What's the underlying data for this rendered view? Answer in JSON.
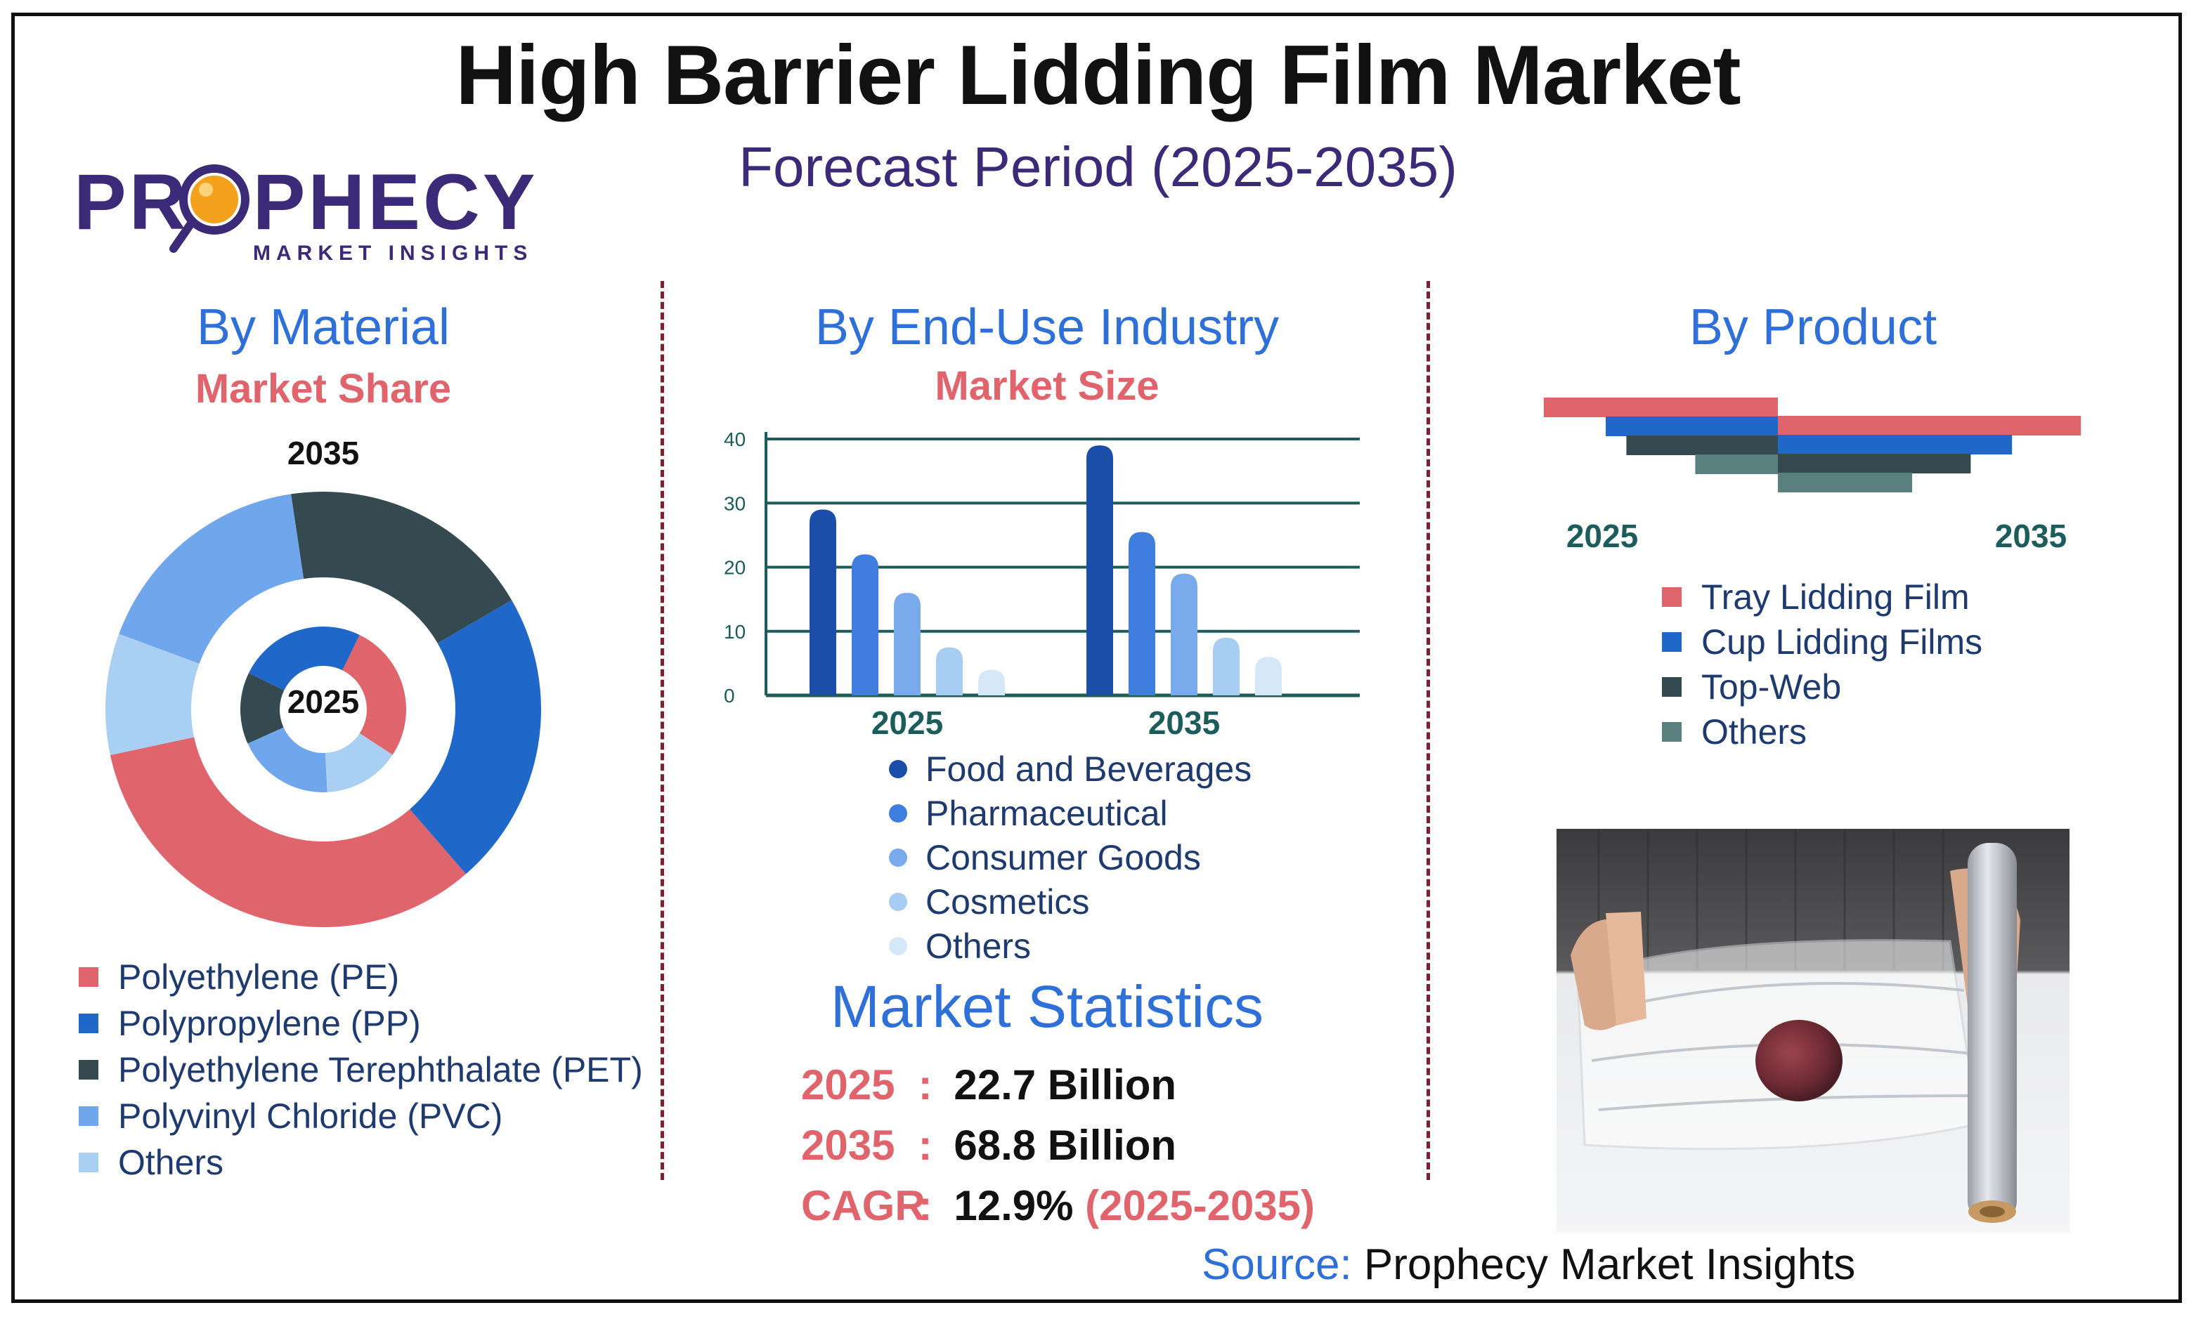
{
  "header": {
    "title": "High Barrier Lidding Film Market",
    "subtitle": "Forecast Period (2025-2035)"
  },
  "logo": {
    "name": "PROPHECY",
    "tagline": "MARKET INSIGHTS"
  },
  "material": {
    "title": "By Material",
    "subtitle": "Market Share"
  },
  "end_use": {
    "title": "By End-Use Industry",
    "subtitle": "Market Size"
  },
  "product": {
    "title": "By Product"
  },
  "statistics": {
    "title": "Market Statistics",
    "rows": [
      {
        "key": "2025",
        "sep": ":",
        "value": "22.7 Billion",
        "extra": ""
      },
      {
        "key": "2035",
        "sep": ":",
        "value": "68.8 Billion",
        "extra": ""
      },
      {
        "key": "CAGR",
        "sep": ":",
        "value": "12.9%",
        "extra": "(2025-2035)"
      }
    ]
  },
  "source": {
    "label": "Source:",
    "value": "Prophecy Market Insights"
  },
  "colors": {
    "pe": "#e0646c",
    "pp": "#1f67c9",
    "pet": "#344a50",
    "pvc": "#6fa6ec",
    "others_material": "#a9d0f2",
    "food": "#1a4ea8",
    "pharma": "#3f7ddf",
    "consumer": "#78aaec",
    "cosmetics": "#a8cdf3",
    "others_enduse": "#d6e8f8",
    "tray": "#e0646c",
    "cup": "#1f67c9",
    "topweb": "#344a50",
    "others_product": "#5a7f7f",
    "axis": "#1c5c5a",
    "title_blue": "#2f6fd8",
    "accent_red": "#e0646c"
  },
  "chart_data": [
    {
      "type": "donut",
      "title": "By Material",
      "subtitle": "Market Share",
      "categories": [
        "Polyethylene (PE)",
        "Polypropylene (PP)",
        "Polyethylene Terephthalate (PET)",
        "Polyvinyl Chloride (PVC)",
        "Others"
      ],
      "series": [
        {
          "name": "2035",
          "values": [
            33,
            22,
            19,
            17,
            9
          ]
        },
        {
          "name": "2025",
          "values": [
            27,
            25,
            14,
            19,
            15
          ]
        }
      ],
      "outer_label": "2035",
      "inner_label": "2025",
      "legend_position": "bottom"
    },
    {
      "type": "bar",
      "title": "By End-Use Industry",
      "subtitle": "Market Size",
      "categories": [
        "2025",
        "2035"
      ],
      "series": [
        {
          "name": "Food and Beverages",
          "values": [
            29,
            39
          ]
        },
        {
          "name": "Pharmaceutical",
          "values": [
            22,
            25.5
          ]
        },
        {
          "name": "Consumer Goods",
          "values": [
            16,
            19
          ]
        },
        {
          "name": "Cosmetics",
          "values": [
            7.5,
            9
          ]
        },
        {
          "name": "Others",
          "values": [
            4,
            6
          ]
        }
      ],
      "ylim": [
        0,
        40
      ],
      "yticks": [
        0,
        10,
        20,
        30,
        40
      ],
      "grid": true,
      "legend_position": "bottom"
    },
    {
      "type": "bar",
      "orientation": "horizontal-butterfly",
      "title": "By Product",
      "categories": [
        "Tray Lidding Film",
        "Cup Lidding Films",
        "Top-Web",
        "Others"
      ],
      "series": [
        {
          "name": "2025",
          "values": [
            34,
            25,
            22,
            12
          ]
        },
        {
          "name": "2035",
          "values": [
            44,
            34,
            28,
            19.5
          ]
        }
      ],
      "left_label": "2025",
      "right_label": "2035",
      "legend_position": "bottom"
    }
  ]
}
